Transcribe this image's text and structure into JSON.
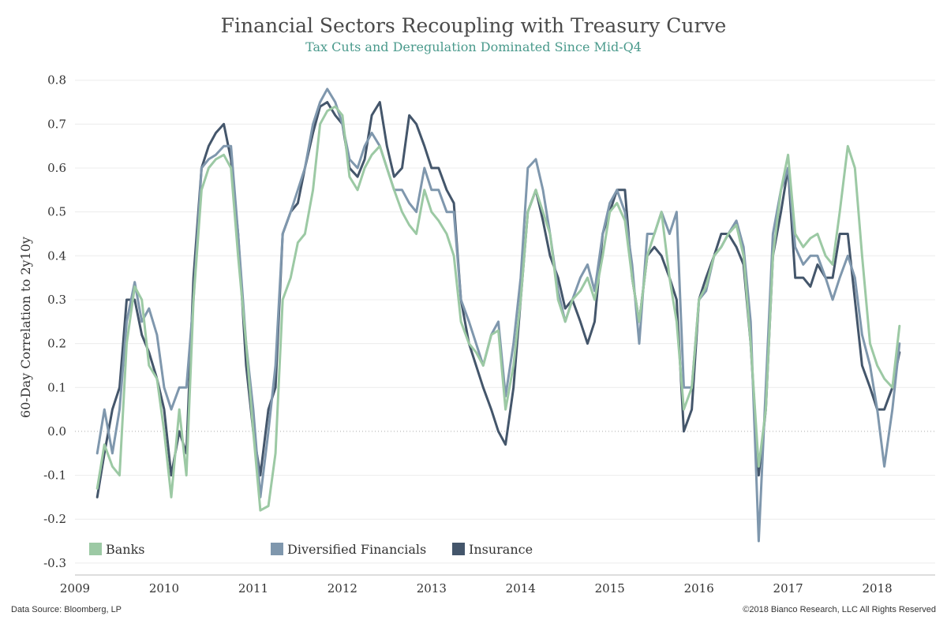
{
  "chart_data": {
    "type": "line",
    "title": "Financial Sectors Recoupling with Treasury Curve",
    "subtitle": "Tax Cuts and Deregulation Dominated Since Mid-Q4",
    "ylabel": "60-Day Correlation to 2y10y",
    "xlabel": "",
    "ylim": [
      -0.32,
      0.83
    ],
    "xlim": [
      2009.0,
      2018.65
    ],
    "y_ticks": [
      "0.8",
      "0.7",
      "0.6",
      "0.5",
      "0.4",
      "0.3",
      "0.2",
      "0.1",
      "0.0",
      "-0.1",
      "-0.2",
      "-0.3"
    ],
    "y_tick_values": [
      0.8,
      0.7,
      0.6,
      0.5,
      0.4,
      0.3,
      0.2,
      0.1,
      0.0,
      -0.1,
      -0.2,
      -0.3
    ],
    "x_ticks": [
      "2009",
      "2010",
      "2011",
      "2012",
      "2013",
      "2014",
      "2015",
      "2016",
      "2017",
      "2018"
    ],
    "x_tick_values": [
      2009.0,
      2010.0,
      2011.0,
      2012.0,
      2013.0,
      2014.0,
      2015.0,
      2016.0,
      2017.0,
      2018.0
    ],
    "grid": true,
    "legend_position": "bottom-left",
    "series": [
      {
        "name": "Banks",
        "color": "#9cc9a4",
        "x": [
          2009.25,
          2009.33,
          2009.42,
          2009.5,
          2009.58,
          2009.67,
          2009.75,
          2009.83,
          2009.92,
          2010.0,
          2010.08,
          2010.17,
          2010.25,
          2010.33,
          2010.42,
          2010.5,
          2010.58,
          2010.67,
          2010.75,
          2010.83,
          2010.92,
          2011.0,
          2011.08,
          2011.17,
          2011.25,
          2011.33,
          2011.42,
          2011.5,
          2011.58,
          2011.67,
          2011.75,
          2011.83,
          2011.92,
          2012.0,
          2012.08,
          2012.17,
          2012.25,
          2012.33,
          2012.42,
          2012.5,
          2012.58,
          2012.67,
          2012.75,
          2012.83,
          2012.92,
          2013.0,
          2013.08,
          2013.17,
          2013.25,
          2013.33,
          2013.42,
          2013.5,
          2013.58,
          2013.67,
          2013.75,
          2013.83,
          2013.92,
          2014.0,
          2014.08,
          2014.17,
          2014.25,
          2014.33,
          2014.42,
          2014.5,
          2014.58,
          2014.67,
          2014.75,
          2014.83,
          2014.92,
          2015.0,
          2015.08,
          2015.17,
          2015.25,
          2015.33,
          2015.42,
          2015.5,
          2015.58,
          2015.67,
          2015.75,
          2015.83,
          2015.92,
          2016.0,
          2016.08,
          2016.17,
          2016.25,
          2016.33,
          2016.42,
          2016.5,
          2016.58,
          2016.67,
          2016.75,
          2016.83,
          2016.92,
          2017.0,
          2017.08,
          2017.17,
          2017.25,
          2017.33,
          2017.42,
          2017.5,
          2017.58,
          2017.67,
          2017.75,
          2017.83,
          2017.92,
          2018.0,
          2018.08,
          2018.17,
          2018.25
        ],
        "values": [
          -0.13,
          -0.03,
          -0.08,
          -0.1,
          0.2,
          0.33,
          0.3,
          0.15,
          0.12,
          0.0,
          -0.15,
          0.05,
          -0.1,
          0.3,
          0.55,
          0.6,
          0.62,
          0.63,
          0.6,
          0.4,
          0.2,
          0.0,
          -0.18,
          -0.17,
          -0.05,
          0.3,
          0.35,
          0.43,
          0.45,
          0.55,
          0.7,
          0.73,
          0.74,
          0.72,
          0.58,
          0.55,
          0.6,
          0.63,
          0.65,
          0.6,
          0.55,
          0.5,
          0.47,
          0.45,
          0.55,
          0.5,
          0.48,
          0.45,
          0.4,
          0.25,
          0.2,
          0.18,
          0.15,
          0.22,
          0.23,
          0.05,
          0.15,
          0.3,
          0.5,
          0.55,
          0.5,
          0.45,
          0.3,
          0.25,
          0.3,
          0.32,
          0.35,
          0.3,
          0.4,
          0.5,
          0.52,
          0.48,
          0.35,
          0.25,
          0.4,
          0.45,
          0.5,
          0.35,
          0.25,
          0.05,
          0.1,
          0.3,
          0.33,
          0.4,
          0.42,
          0.45,
          0.47,
          0.4,
          0.2,
          -0.08,
          0.05,
          0.4,
          0.55,
          0.63,
          0.45,
          0.42,
          0.44,
          0.45,
          0.4,
          0.38,
          0.5,
          0.65,
          0.6,
          0.4,
          0.2,
          0.15,
          0.12,
          0.1,
          0.24
        ]
      },
      {
        "name": "Diversified Financials",
        "color": "#7f97ad",
        "x": [
          2009.25,
          2009.33,
          2009.42,
          2009.5,
          2009.58,
          2009.67,
          2009.75,
          2009.83,
          2009.92,
          2010.0,
          2010.08,
          2010.17,
          2010.25,
          2010.33,
          2010.42,
          2010.5,
          2010.58,
          2010.67,
          2010.75,
          2010.83,
          2010.92,
          2011.0,
          2011.08,
          2011.17,
          2011.25,
          2011.33,
          2011.42,
          2011.5,
          2011.58,
          2011.67,
          2011.75,
          2011.83,
          2011.92,
          2012.0,
          2012.08,
          2012.17,
          2012.25,
          2012.33,
          2012.42,
          2012.5,
          2012.58,
          2012.67,
          2012.75,
          2012.83,
          2012.92,
          2013.0,
          2013.08,
          2013.17,
          2013.25,
          2013.33,
          2013.42,
          2013.5,
          2013.58,
          2013.67,
          2013.75,
          2013.83,
          2013.92,
          2014.0,
          2014.08,
          2014.17,
          2014.25,
          2014.33,
          2014.42,
          2014.5,
          2014.58,
          2014.67,
          2014.75,
          2014.83,
          2014.92,
          2015.0,
          2015.08,
          2015.17,
          2015.25,
          2015.33,
          2015.42,
          2015.5,
          2015.58,
          2015.67,
          2015.75,
          2015.83,
          2015.92,
          2016.0,
          2016.08,
          2016.17,
          2016.25,
          2016.33,
          2016.42,
          2016.5,
          2016.58,
          2016.67,
          2016.75,
          2016.83,
          2016.92,
          2017.0,
          2017.08,
          2017.17,
          2017.25,
          2017.33,
          2017.42,
          2017.5,
          2017.58,
          2017.67,
          2017.75,
          2017.83,
          2017.92,
          2018.0,
          2018.08,
          2018.17,
          2018.25
        ],
        "values": [
          -0.05,
          0.05,
          -0.05,
          0.05,
          0.25,
          0.34,
          0.25,
          0.28,
          0.22,
          0.1,
          0.05,
          0.1,
          0.1,
          0.3,
          0.6,
          0.62,
          0.63,
          0.65,
          0.65,
          0.45,
          0.2,
          0.05,
          -0.15,
          0.0,
          0.15,
          0.45,
          0.5,
          0.55,
          0.6,
          0.7,
          0.75,
          0.78,
          0.75,
          0.7,
          0.62,
          0.6,
          0.65,
          0.68,
          0.65,
          0.6,
          0.55,
          0.55,
          0.52,
          0.5,
          0.6,
          0.55,
          0.55,
          0.5,
          0.5,
          0.3,
          0.25,
          0.2,
          0.15,
          0.22,
          0.25,
          0.08,
          0.2,
          0.35,
          0.6,
          0.62,
          0.55,
          0.45,
          0.32,
          0.25,
          0.3,
          0.35,
          0.38,
          0.32,
          0.45,
          0.52,
          0.55,
          0.5,
          0.38,
          0.2,
          0.45,
          0.45,
          0.5,
          0.45,
          0.5,
          0.1,
          0.1,
          0.3,
          0.32,
          0.4,
          0.42,
          0.45,
          0.48,
          0.42,
          0.25,
          -0.25,
          0.1,
          0.45,
          0.55,
          0.6,
          0.42,
          0.38,
          0.4,
          0.4,
          0.35,
          0.3,
          0.35,
          0.4,
          0.35,
          0.22,
          0.15,
          0.05,
          -0.08,
          0.05,
          0.2
        ]
      },
      {
        "name": "Insurance",
        "color": "#44566b",
        "x": [
          2009.25,
          2009.33,
          2009.42,
          2009.5,
          2009.58,
          2009.67,
          2009.75,
          2009.83,
          2009.92,
          2010.0,
          2010.08,
          2010.17,
          2010.25,
          2010.33,
          2010.42,
          2010.5,
          2010.58,
          2010.67,
          2010.75,
          2010.83,
          2010.92,
          2011.0,
          2011.08,
          2011.17,
          2011.25,
          2011.33,
          2011.42,
          2011.5,
          2011.58,
          2011.67,
          2011.75,
          2011.83,
          2011.92,
          2012.0,
          2012.08,
          2012.17,
          2012.25,
          2012.33,
          2012.42,
          2012.5,
          2012.58,
          2012.67,
          2012.75,
          2012.83,
          2012.92,
          2013.0,
          2013.08,
          2013.17,
          2013.25,
          2013.33,
          2013.42,
          2013.5,
          2013.58,
          2013.67,
          2013.75,
          2013.83,
          2013.92,
          2014.0,
          2014.08,
          2014.17,
          2014.25,
          2014.33,
          2014.42,
          2014.5,
          2014.58,
          2014.67,
          2014.75,
          2014.83,
          2014.92,
          2015.0,
          2015.08,
          2015.17,
          2015.25,
          2015.33,
          2015.42,
          2015.5,
          2015.58,
          2015.67,
          2015.75,
          2015.83,
          2015.92,
          2016.0,
          2016.08,
          2016.17,
          2016.25,
          2016.33,
          2016.42,
          2016.5,
          2016.58,
          2016.67,
          2016.75,
          2016.83,
          2016.92,
          2017.0,
          2017.08,
          2017.17,
          2017.25,
          2017.33,
          2017.42,
          2017.5,
          2017.58,
          2017.67,
          2017.75,
          2017.83,
          2017.92,
          2018.0,
          2018.08,
          2018.17,
          2018.25
        ],
        "values": [
          -0.15,
          -0.05,
          0.05,
          0.1,
          0.3,
          0.3,
          0.22,
          0.18,
          0.12,
          0.05,
          -0.1,
          0.0,
          -0.05,
          0.35,
          0.6,
          0.65,
          0.68,
          0.7,
          0.62,
          0.45,
          0.15,
          0.0,
          -0.1,
          0.05,
          0.1,
          0.45,
          0.5,
          0.52,
          0.6,
          0.68,
          0.74,
          0.75,
          0.72,
          0.7,
          0.6,
          0.58,
          0.62,
          0.72,
          0.75,
          0.65,
          0.58,
          0.6,
          0.72,
          0.7,
          0.65,
          0.6,
          0.6,
          0.55,
          0.52,
          0.3,
          0.2,
          0.15,
          0.1,
          0.05,
          0.0,
          -0.03,
          0.1,
          0.3,
          0.5,
          0.55,
          0.48,
          0.4,
          0.35,
          0.28,
          0.3,
          0.25,
          0.2,
          0.25,
          0.45,
          0.5,
          0.55,
          0.55,
          0.35,
          0.25,
          0.4,
          0.42,
          0.4,
          0.35,
          0.3,
          0.0,
          0.05,
          0.3,
          0.35,
          0.4,
          0.45,
          0.45,
          0.42,
          0.38,
          0.2,
          -0.1,
          0.05,
          0.4,
          0.5,
          0.6,
          0.35,
          0.35,
          0.33,
          0.38,
          0.35,
          0.35,
          0.45,
          0.45,
          0.3,
          0.15,
          0.1,
          0.05,
          0.05,
          0.1,
          0.18
        ]
      }
    ]
  },
  "footer": {
    "source": "Data Source: Bloomberg, LP",
    "copyright": "©2018 Bianco Research, LLC  All Rights Reserved"
  }
}
